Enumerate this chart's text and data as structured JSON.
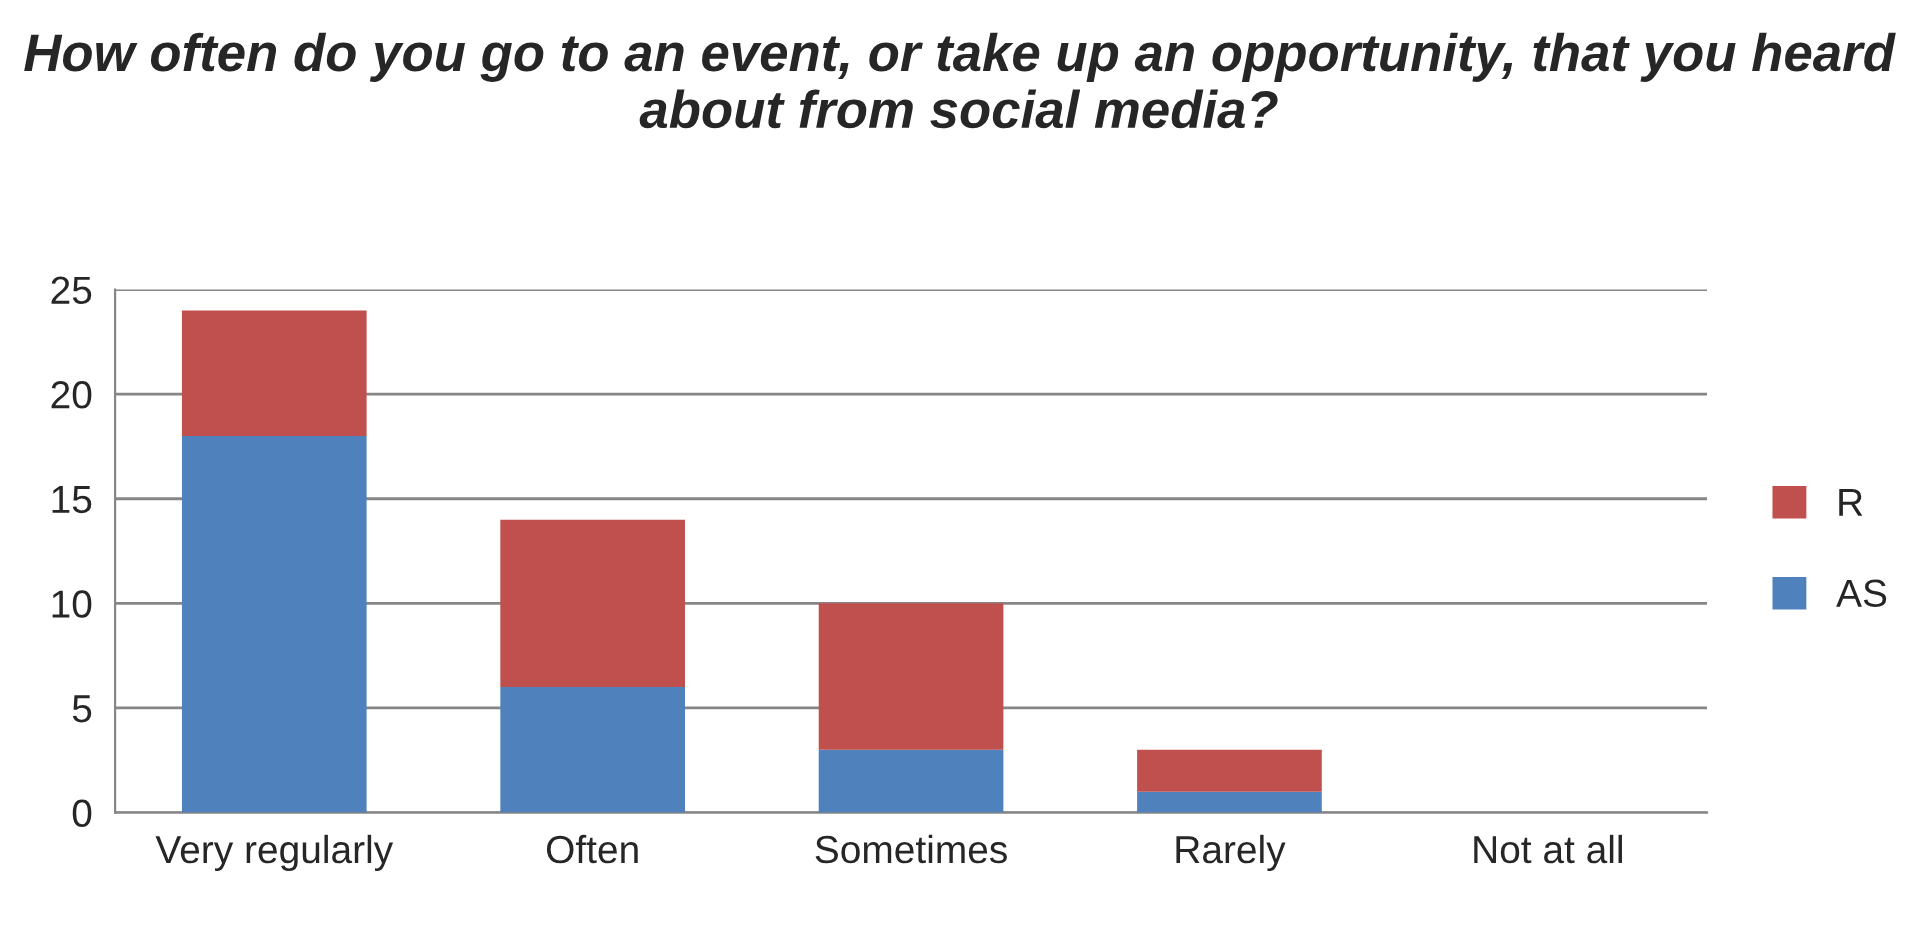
{
  "chart_data": {
    "type": "bar",
    "title": "How often do you go to an event, or take up an opportunity, that you heard about from social media?",
    "categories": [
      "Very regularly",
      "Often",
      "Sometimes",
      "Rarely",
      "Not at all"
    ],
    "series": [
      {
        "name": "AS",
        "color": "#4f81bd",
        "values": [
          18,
          6,
          3,
          1,
          0
        ]
      },
      {
        "name": "R",
        "color": "#c0504d",
        "values": [
          6,
          8,
          7,
          2,
          0
        ]
      }
    ],
    "stacked": true,
    "ylim": [
      0,
      25
    ],
    "yticks": [
      0,
      5,
      10,
      15,
      20,
      25
    ],
    "grid": "y",
    "legend": "right"
  }
}
